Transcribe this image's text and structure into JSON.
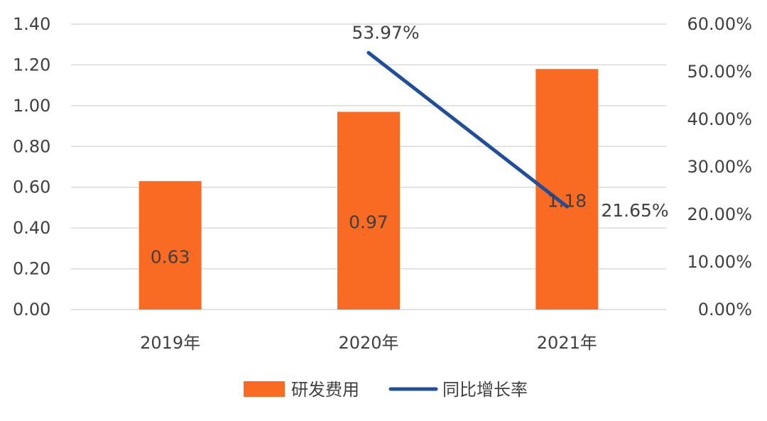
{
  "chart_data": {
    "type": "bar",
    "categories": [
      "2019年",
      "2020年",
      "2021年"
    ],
    "series": [
      {
        "name": "研发费用",
        "type": "bar",
        "axis": "left",
        "values": [
          0.63,
          0.97,
          1.18
        ],
        "labels": [
          "0.63",
          "0.97",
          "1.18"
        ],
        "color": "#F96A22"
      },
      {
        "name": "同比增长率",
        "type": "line",
        "axis": "right",
        "values": [
          null,
          53.97,
          21.65
        ],
        "labels": [
          "",
          "53.97%",
          "21.65%"
        ],
        "color": "#1F4E9C"
      }
    ],
    "y_left": {
      "ylim": [
        0,
        1.4
      ],
      "ticks": [
        "0.00",
        "0.20",
        "0.40",
        "0.60",
        "0.80",
        "1.00",
        "1.20",
        "1.40"
      ]
    },
    "y_right": {
      "ylim": [
        0,
        60
      ],
      "ticks": [
        "0.00%",
        "10.00%",
        "20.00%",
        "30.00%",
        "40.00%",
        "50.00%",
        "60.00%"
      ]
    },
    "grid": true,
    "legend_position": "bottom",
    "title": "",
    "xlabel": "",
    "ylabel": ""
  }
}
